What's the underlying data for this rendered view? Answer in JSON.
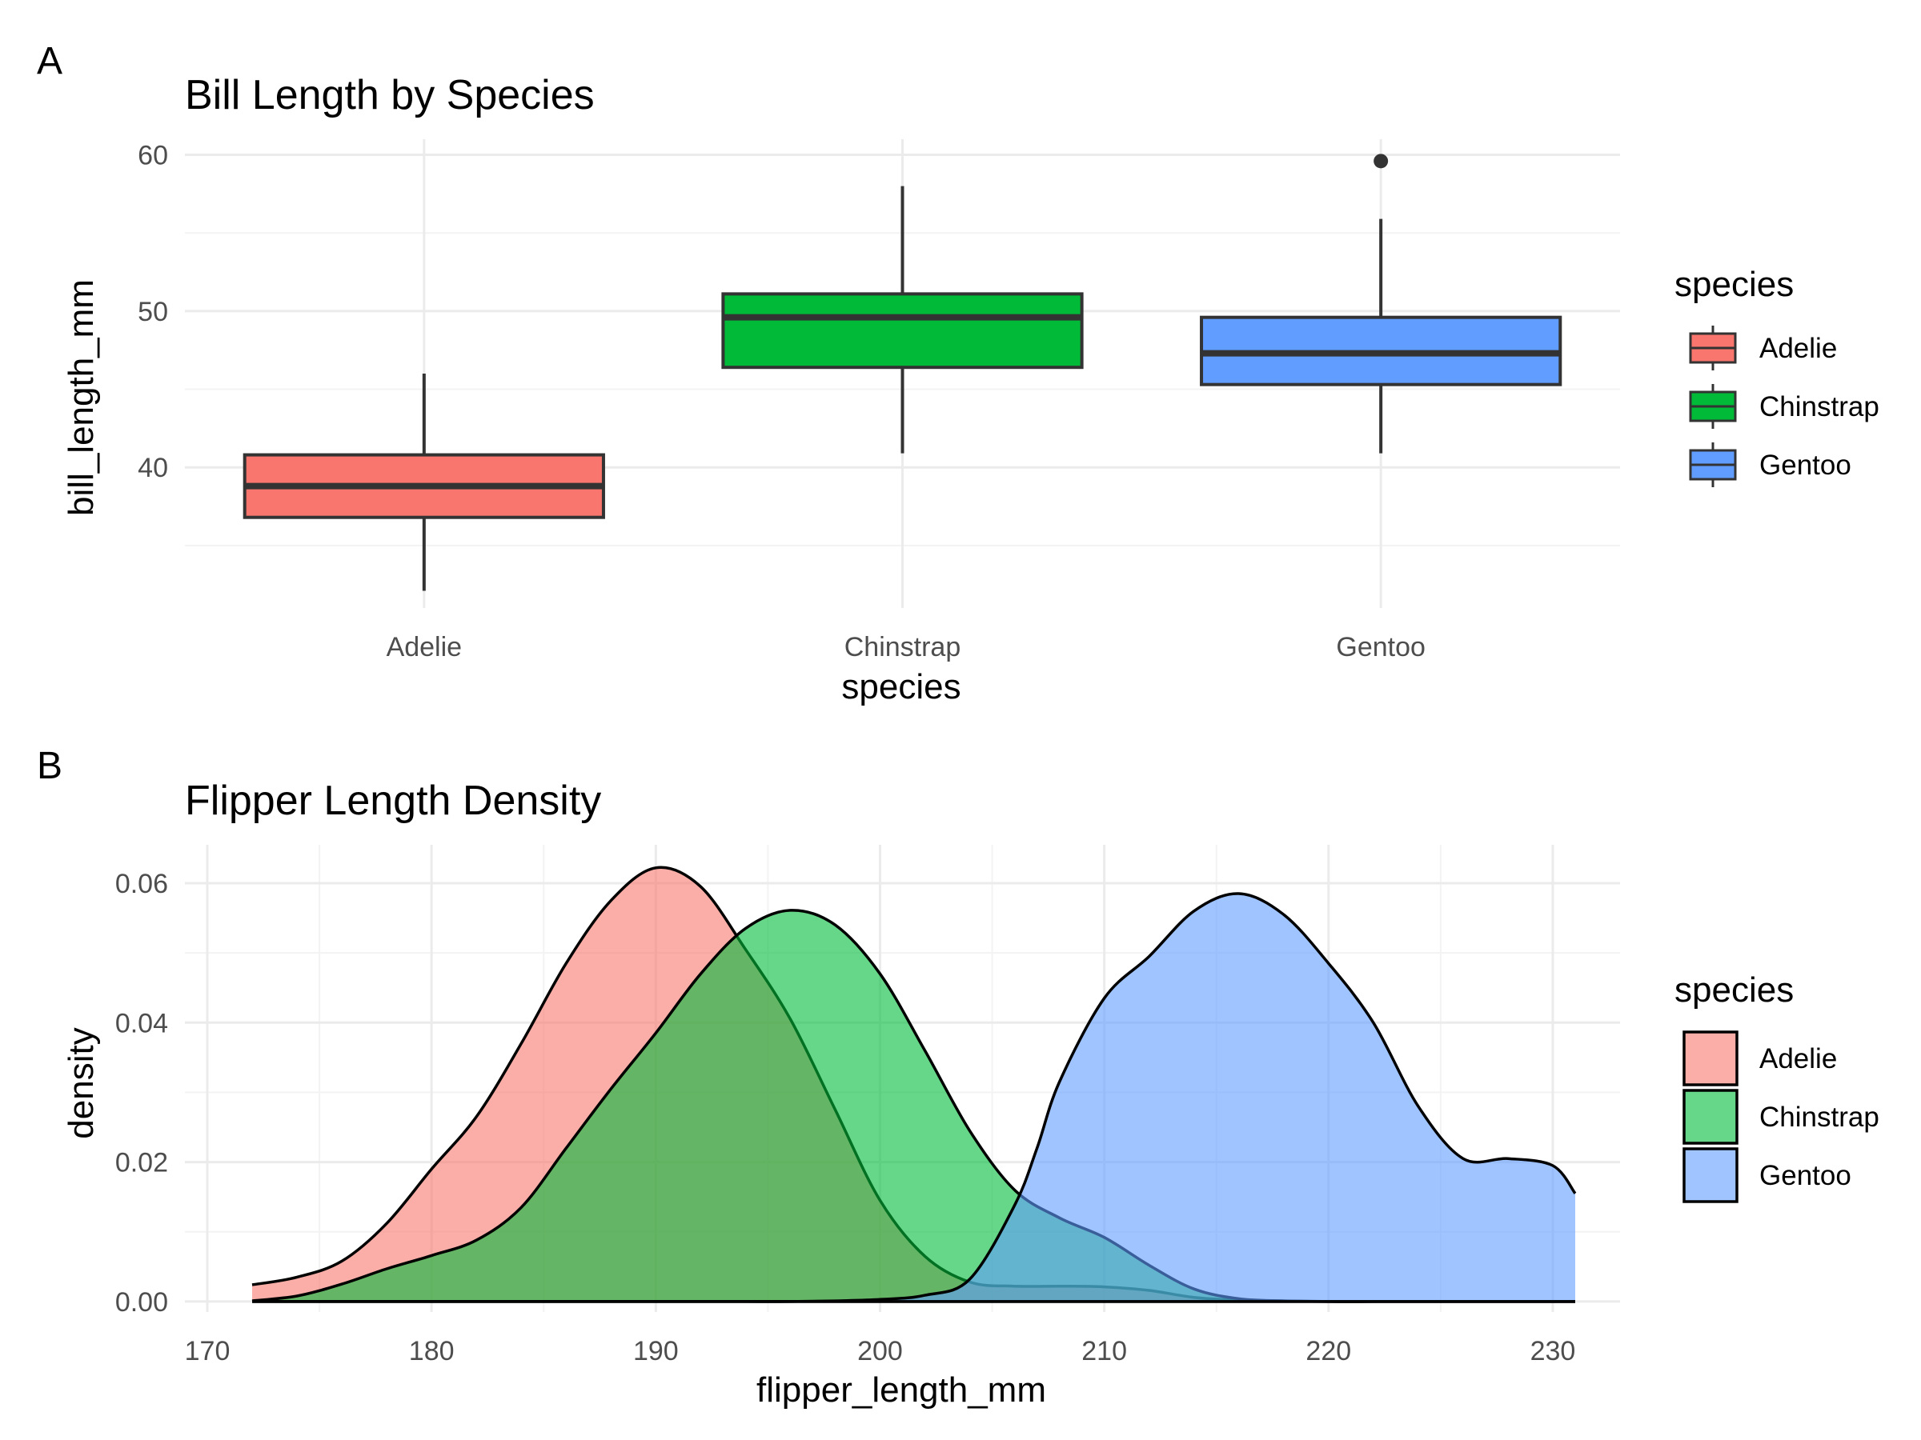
{
  "figure": {
    "panel_a_tag": "A",
    "panel_b_tag": "B"
  },
  "chart_data": [
    {
      "type": "boxplot",
      "title": "Bill Length by Species",
      "xlabel": "species",
      "ylabel": "bill_length_mm",
      "categories": [
        "Adelie",
        "Chinstrap",
        "Gentoo"
      ],
      "ylim": [
        31,
        61
      ],
      "y_ticks": [
        40,
        50,
        60
      ],
      "y_minor_ticks": [
        35,
        45,
        55
      ],
      "grid": true,
      "legend": {
        "title": "species",
        "position": "right"
      },
      "colors": [
        "#F8766D",
        "#00BA38",
        "#619CFF"
      ],
      "boxes": [
        {
          "category": "Adelie",
          "whisker_low": 32.1,
          "q1": 36.8,
          "median": 38.8,
          "q3": 40.8,
          "whisker_high": 46.0,
          "outliers": []
        },
        {
          "category": "Chinstrap",
          "whisker_low": 40.9,
          "q1": 46.4,
          "median": 49.6,
          "q3": 51.1,
          "whisker_high": 58.0,
          "outliers": []
        },
        {
          "category": "Gentoo",
          "whisker_low": 40.9,
          "q1": 45.3,
          "median": 47.3,
          "q3": 49.6,
          "whisker_high": 55.9,
          "outliers": [
            59.6
          ]
        }
      ]
    },
    {
      "type": "area",
      "title": "Flipper Length Density",
      "xlabel": "flipper_length_mm",
      "ylabel": "density",
      "xlim": [
        169,
        233
      ],
      "ylim": [
        -0.0015,
        0.0655
      ],
      "x_ticks": [
        170,
        180,
        190,
        200,
        210,
        220,
        230
      ],
      "x_minor_ticks": [
        175,
        185,
        195,
        205,
        215,
        225
      ],
      "y_ticks": [
        0.0,
        0.02,
        0.04,
        0.06
      ],
      "y_tick_labels": [
        "0.00",
        "0.02",
        "0.04",
        "0.06"
      ],
      "y_minor_ticks": [
        0.01,
        0.03,
        0.05
      ],
      "grid": true,
      "legend": {
        "title": "species",
        "position": "right"
      },
      "series": [
        {
          "name": "Adelie",
          "color": "#F8766D",
          "x": [
            172,
            174,
            176,
            178,
            180,
            182,
            184,
            186,
            188,
            190,
            192,
            194,
            196,
            198,
            200,
            202,
            204,
            206,
            208,
            210,
            212,
            214,
            216,
            218,
            220,
            222,
            224,
            226,
            228,
            230,
            231
          ],
          "y": [
            0.0024,
            0.0035,
            0.0058,
            0.0112,
            0.019,
            0.0265,
            0.037,
            0.0485,
            0.0575,
            0.0622,
            0.0595,
            0.0505,
            0.0405,
            0.0275,
            0.0145,
            0.0065,
            0.0028,
            0.0022,
            0.0022,
            0.0021,
            0.0016,
            0.0006,
            0.0002,
            0.0001,
            0.0,
            0.0,
            0.0,
            0.0,
            0.0,
            0.0,
            0.0
          ]
        },
        {
          "name": "Chinstrap",
          "color": "#00BA38",
          "x": [
            172,
            174,
            176,
            178,
            180,
            182,
            184,
            186,
            188,
            190,
            192,
            194,
            196,
            198,
            200,
            202,
            204,
            206,
            208,
            210,
            212,
            214,
            216,
            218,
            220,
            222,
            224,
            226,
            228,
            230,
            231
          ],
          "y": [
            0.0001,
            0.0008,
            0.0025,
            0.0047,
            0.0066,
            0.0088,
            0.0135,
            0.022,
            0.0305,
            0.0385,
            0.047,
            0.0535,
            0.0561,
            0.054,
            0.047,
            0.036,
            0.0245,
            0.016,
            0.012,
            0.0092,
            0.0052,
            0.0018,
            0.0004,
            0.0001,
            0.0,
            0.0,
            0.0,
            0.0,
            0.0,
            0.0,
            0.0
          ]
        },
        {
          "name": "Gentoo",
          "color": "#619CFF",
          "x": [
            172,
            174,
            176,
            178,
            180,
            182,
            184,
            186,
            188,
            190,
            192,
            194,
            196,
            198,
            200,
            202,
            204,
            206,
            207,
            208,
            210,
            212,
            214,
            216,
            218,
            220,
            222,
            224,
            226,
            228,
            230,
            231
          ],
          "y": [
            0.0,
            0.0,
            0.0,
            0.0,
            0.0,
            0.0,
            0.0,
            0.0,
            0.0,
            0.0,
            0.0,
            0.0,
            0.0,
            0.0001,
            0.0003,
            0.0009,
            0.0032,
            0.0138,
            0.022,
            0.0315,
            0.0435,
            0.0495,
            0.056,
            0.0585,
            0.0555,
            0.0485,
            0.04,
            0.028,
            0.0205,
            0.0205,
            0.0195,
            0.0155
          ]
        }
      ]
    }
  ]
}
